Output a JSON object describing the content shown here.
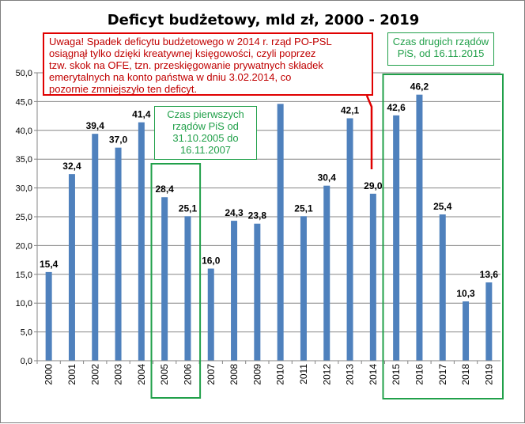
{
  "chart_data": {
    "type": "bar",
    "title": "Deficyt budżetowy, mld zł,  2000 - 2019",
    "categories": [
      "2000",
      "2001",
      "2002",
      "2003",
      "2004",
      "2005",
      "2006",
      "2007",
      "2008",
      "2009",
      "2010",
      "2011",
      "2012",
      "2013",
      "2014",
      "2015",
      "2016",
      "2017",
      "2018",
      "2019"
    ],
    "values": [
      15.4,
      32.4,
      39.4,
      37.0,
      41.4,
      28.4,
      25.1,
      16.0,
      24.3,
      23.8,
      44.6,
      25.1,
      30.4,
      42.1,
      29.0,
      42.6,
      46.2,
      25.4,
      10.3,
      13.6
    ],
    "data_labels": [
      "15,4",
      "32,4",
      "39,4",
      "37,0",
      "41,4",
      "28,4",
      "25,1",
      "16,0",
      "24,3",
      "23,8",
      "",
      "25,1",
      "30,4",
      "42,1",
      "29,0",
      "42,6",
      "46,2",
      "25,4",
      "10,3",
      "13,6"
    ],
    "ylim": [
      0,
      50
    ],
    "yticks": [
      "0,0",
      "5,0",
      "10,0",
      "15,0",
      "20,0",
      "25,0",
      "30,0",
      "35,0",
      "40,0",
      "45,0",
      "50,0"
    ],
    "grid": true,
    "bar_color": "#4f81bd",
    "xlabel": "",
    "ylabel": ""
  },
  "annotations": {
    "note": {
      "lines": [
        "Uwaga! Spadek deficytu budżetowego  w 2014 r. rząd PO-PSL",
        "osiągnął tylko  dzięki kreatywnej księgowości, czyli poprzez",
        "tzw. skok na OFE, tzn. przeskięgowanie prywatnych składek",
        "emerytalnych na konto państwa  w dniu 3.02.2014, co",
        "pozornie  zmniejszyło ten deficyt."
      ],
      "color": "#c00000",
      "border_color": "#e00000"
    },
    "pis_first": {
      "lines": [
        "Czas pierwszych",
        "rządów PiS od",
        "31.10.2005 do",
        "16.11.2007"
      ],
      "color": "#21a04a"
    },
    "pis_second": {
      "lines": [
        "Czas drugich rządów",
        "PiS, od 16.11.2015"
      ],
      "color": "#21a04a"
    }
  }
}
